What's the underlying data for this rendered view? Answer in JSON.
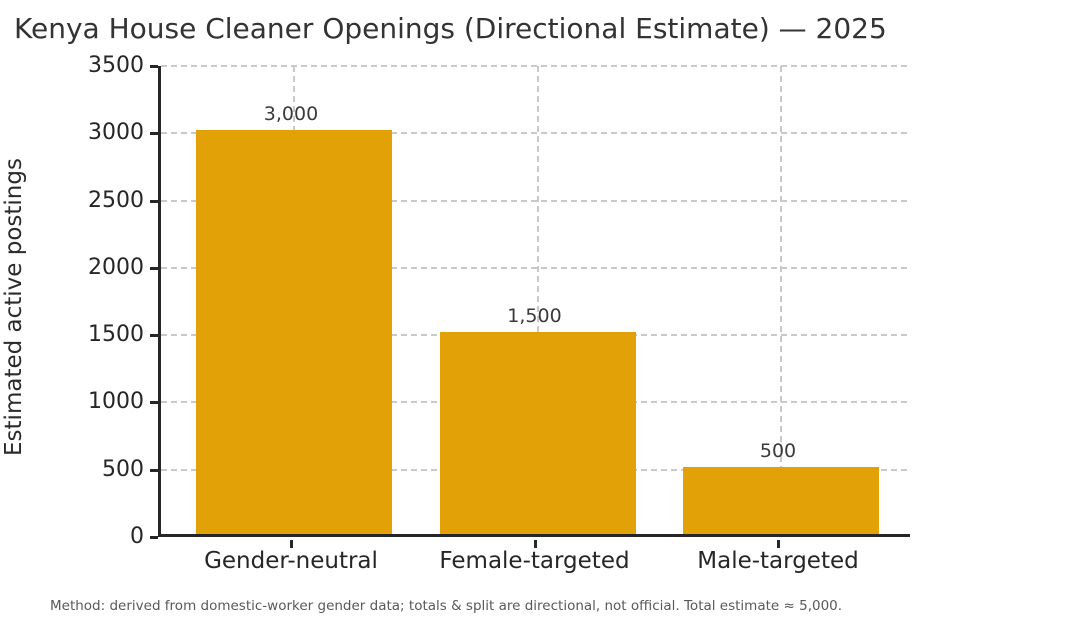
{
  "figure": {
    "title": "Kenya House Cleaner Openings (Directional Estimate) — 2025",
    "footnote": "Method: derived from domestic-worker gender data; totals & split are directional, not official. Total estimate ≈ 5,000."
  },
  "chart_data": {
    "type": "bar",
    "title": "Kenya House Cleaner Openings (Directional Estimate) — 2025",
    "categories": [
      "Gender-neutral",
      "Female-targeted",
      "Male-targeted"
    ],
    "values": [
      3000,
      1500,
      500
    ],
    "bar_labels": [
      "3,000",
      "1,500",
      "500"
    ],
    "xlabel": "",
    "ylabel": "Estimated active postings",
    "ylim": [
      0,
      3500
    ],
    "yticks": [
      0,
      500,
      1000,
      1500,
      2000,
      2500,
      3000,
      3500
    ],
    "ytick_labels": [
      "0",
      "500",
      "1000",
      "1500",
      "2000",
      "2500",
      "3000",
      "3500"
    ],
    "grid": true,
    "grid_style": "dashed",
    "legend": null,
    "annotation": "Method: derived from domestic-worker gender data; totals & split are directional, not official. Total estimate ≈ 5,000.",
    "colors": {
      "bar": "#E2A106",
      "axis_text": "#262626",
      "title_text": "#333333",
      "grid": "#c9c9c9",
      "footnote_text": "#595959",
      "background": "#ffffff"
    }
  }
}
